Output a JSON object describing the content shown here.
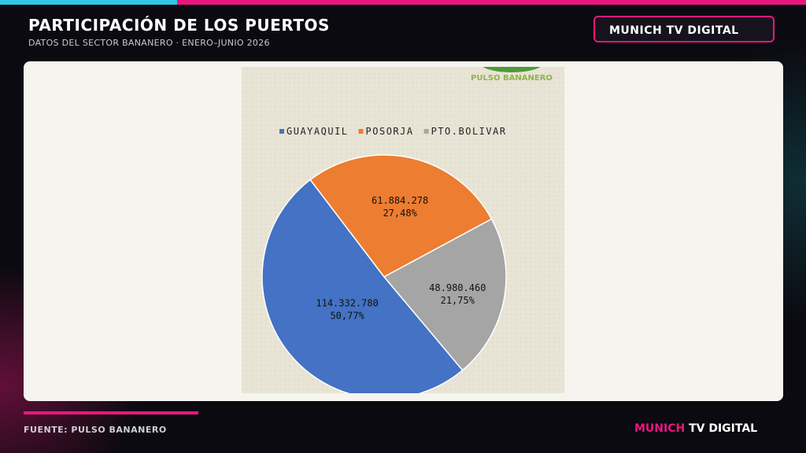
{
  "header": {
    "title": "PARTICIPACIÓN DE LOS PUERTOS",
    "subtitle": "DATOS DEL SECTOR BANANERO · ENERO–JUNIO 2026",
    "brand": "MUNICH TV DIGITAL"
  },
  "footer": {
    "source": "FUENTE: PULSO BANANERO",
    "brand_accent": "MUNICH",
    "brand_rest": "TV DIGITAL"
  },
  "chart_data": {
    "type": "pie",
    "watermark": "PULSO BANANERO",
    "categories": [
      "GUAYAQUIL",
      "POSORJA",
      "PTO.BOLIVAR"
    ],
    "values": [
      114332780,
      61884278,
      48980460
    ],
    "value_labels": [
      "114.332.780",
      "61.884.278",
      "48.980.460"
    ],
    "percents": [
      {
        "value": 50.77,
        "label": "50,77%"
      },
      {
        "value": 27.48,
        "label": "27,48%"
      },
      {
        "value": 21.75,
        "label": "21,75%"
      }
    ],
    "colors": [
      "#4472c4",
      "#ed7d31",
      "#a5a5a5"
    ]
  }
}
